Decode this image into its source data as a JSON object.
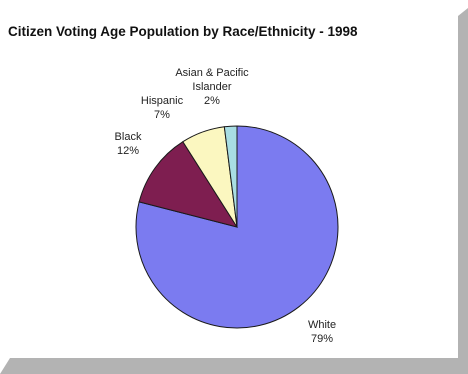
{
  "chart_data": {
    "type": "pie",
    "title": "Citizen Voting Age Population by Race/Ethnicity - 1998",
    "slices": [
      {
        "label_lines": [
          "White"
        ],
        "value": 79,
        "value_text": "79%",
        "color": "#7b7bf0"
      },
      {
        "label_lines": [
          "Black"
        ],
        "value": 12,
        "value_text": "12%",
        "color": "#7e1e50"
      },
      {
        "label_lines": [
          "Hispanic"
        ],
        "value": 7,
        "value_text": "7%",
        "color": "#fbf7c0"
      },
      {
        "label_lines": [
          "Asian & Pacific",
          "Islander"
        ],
        "value": 2,
        "value_text": "2%",
        "color": "#a8dde3"
      }
    ],
    "legend": "none",
    "start_angle_deg": 0,
    "direction": "clockwise"
  },
  "colors": {
    "background": "#ffffff",
    "panel_shadow": "#b3b3b3",
    "slice_outline": "#1a1a1a"
  }
}
